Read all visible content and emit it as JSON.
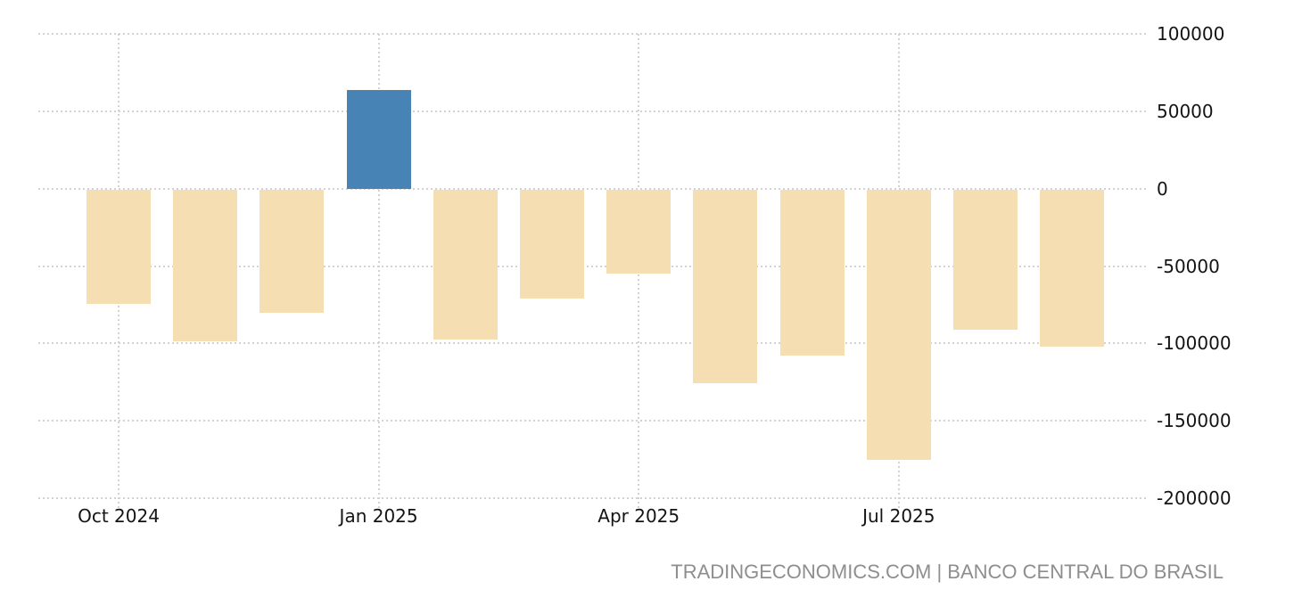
{
  "chart_data": {
    "type": "bar",
    "title": "",
    "categories": [
      "Oct 2024",
      "Nov 2024",
      "Dec 2024",
      "Jan 2025",
      "Feb 2025",
      "Mar 2025",
      "Apr 2025",
      "May 2025",
      "Jun 2025",
      "Jul 2025",
      "Aug 2025",
      "Sep 2025"
    ],
    "values": [
      -74500,
      -98500,
      -80000,
      64000,
      -97500,
      -71000,
      -55000,
      -126000,
      -108000,
      -175500,
      -91000,
      -102000
    ],
    "x_tick_labels": [
      "Oct 2024",
      "Jan 2025",
      "Apr 2025",
      "Jul 2025"
    ],
    "x_tick_indices": [
      0,
      3,
      6,
      9
    ],
    "y_ticks": [
      100000,
      50000,
      0,
      -50000,
      -100000,
      -150000,
      -200000
    ],
    "y_tick_labels": [
      "100000",
      "50000",
      "0",
      "-50000",
      "-100000",
      "-150000",
      "-200000"
    ],
    "ylim": [
      -200000,
      100000
    ],
    "grid": "dotted",
    "legend_position": "none",
    "colors": {
      "positive_bar": "#4783B4",
      "negative_bar": "#F5DFB2",
      "gridline": "#d2d2d2",
      "axis_text": "#141414"
    }
  },
  "footer": {
    "attribution": "TRADINGECONOMICS.COM | BANCO CENTRAL DO BRASIL",
    "attribution_color": "#8e8e8e"
  }
}
